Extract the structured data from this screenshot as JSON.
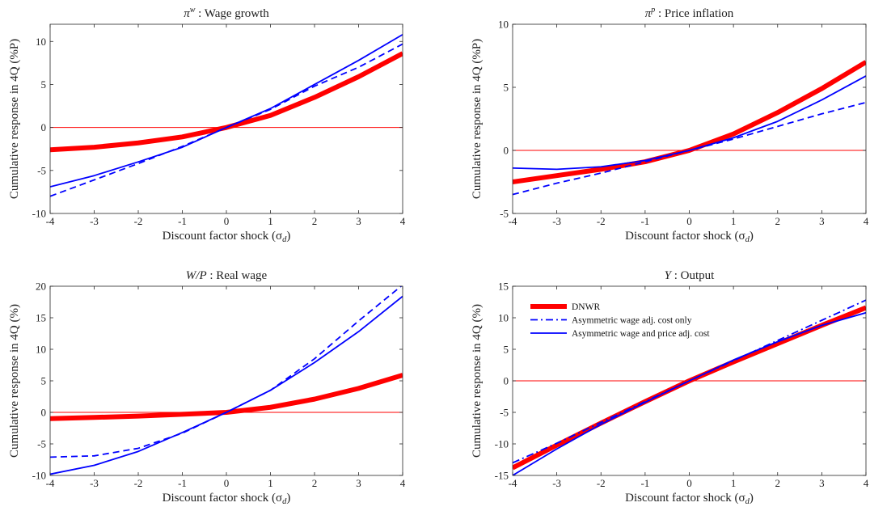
{
  "chart_data": [
    {
      "type": "line",
      "title_sym": "π",
      "title_sup": "w",
      "title_text": " : Wage growth",
      "xlabel": "Discount factor shock (σ",
      "xlabel_sub": "d",
      "xlabel_end": ")",
      "ylabel": "Cumulative response in 4Q (%P)",
      "x": [
        -4,
        -3,
        -2,
        -1,
        0,
        1,
        2,
        3,
        4
      ],
      "xlim": [
        -4,
        4
      ],
      "ylim": [
        -10,
        12
      ],
      "xticks": [
        "-4",
        "-3",
        "-2",
        "-1",
        "0",
        "1",
        "2",
        "3",
        "4"
      ],
      "yticks": [
        -10,
        -5,
        0,
        5,
        10
      ],
      "yticklabels": [
        "-10",
        "-5",
        "0",
        "5",
        "10"
      ],
      "zero_line": true,
      "series": [
        {
          "values": [
            -2.6,
            -2.3,
            -1.8,
            -1.1,
            0,
            1.4,
            3.5,
            5.9,
            8.6
          ],
          "color": "#ff0000",
          "width": 6,
          "dash": "solid"
        },
        {
          "values": [
            -8.0,
            -6.1,
            -4.2,
            -2.2,
            0,
            2.1,
            4.8,
            7.0,
            9.7
          ],
          "color": "#0000ff",
          "width": 1.8,
          "dash": "dashed"
        },
        {
          "values": [
            -6.9,
            -5.6,
            -4.0,
            -2.3,
            0,
            2.2,
            5.0,
            7.8,
            10.8
          ],
          "color": "#0000ff",
          "width": 1.8,
          "dash": "solid"
        }
      ]
    },
    {
      "type": "line",
      "title_sym": "π",
      "title_sup": "p",
      "title_text": " : Price inflation",
      "xlabel": "Discount factor shock (σ",
      "xlabel_sub": "d",
      "xlabel_end": ")",
      "ylabel": "Cumulative response in 4Q (%P)",
      "x": [
        -4,
        -3,
        -2,
        -1,
        0,
        1,
        2,
        3,
        4
      ],
      "xlim": [
        -4,
        4
      ],
      "ylim": [
        -5,
        10
      ],
      "xticks": [
        "-4",
        "-3",
        "-2",
        "-1",
        "0",
        "1",
        "2",
        "3",
        "4"
      ],
      "yticks": [
        -5,
        0,
        5,
        10
      ],
      "yticklabels": [
        "-5",
        "0",
        "5",
        "10"
      ],
      "zero_line": true,
      "series": [
        {
          "values": [
            -2.5,
            -2.0,
            -1.5,
            -0.9,
            0,
            1.3,
            3.0,
            4.9,
            7.0
          ],
          "color": "#ff0000",
          "width": 6,
          "dash": "solid"
        },
        {
          "values": [
            -3.5,
            -2.6,
            -1.8,
            -0.9,
            0,
            0.9,
            1.9,
            2.9,
            3.8
          ],
          "color": "#0000ff",
          "width": 1.8,
          "dash": "dashed"
        },
        {
          "values": [
            -1.4,
            -1.5,
            -1.3,
            -0.8,
            0,
            1.0,
            2.3,
            4.0,
            5.9
          ],
          "color": "#0000ff",
          "width": 1.8,
          "dash": "solid"
        }
      ]
    },
    {
      "type": "line",
      "title_sym": "W/P",
      "title_sup": "",
      "title_text": " : Real wage",
      "xlabel": "Discount factor shock (σ",
      "xlabel_sub": "d",
      "xlabel_end": ")",
      "ylabel": "Cumulative response in 4Q (%)",
      "x": [
        -4,
        -3,
        -2,
        -1,
        0,
        1,
        2,
        3,
        4
      ],
      "xlim": [
        -4,
        4
      ],
      "ylim": [
        -10,
        20
      ],
      "xticks": [
        "-4",
        "-3",
        "-2",
        "-1",
        "0",
        "1",
        "2",
        "3",
        "4"
      ],
      "yticks": [
        -10,
        -5,
        0,
        5,
        10,
        15,
        20
      ],
      "yticklabels": [
        "-10",
        "-5",
        "0",
        "5",
        "10",
        "15",
        "20"
      ],
      "zero_line": true,
      "series": [
        {
          "values": [
            -1.0,
            -0.8,
            -0.6,
            -0.3,
            0,
            0.8,
            2.1,
            3.8,
            5.9
          ],
          "color": "#ff0000",
          "width": 6,
          "dash": "solid"
        },
        {
          "values": [
            -7.1,
            -6.9,
            -5.7,
            -3.3,
            0,
            3.5,
            8.5,
            14.5,
            20.2
          ],
          "color": "#0000ff",
          "width": 1.8,
          "dash": "dashed"
        },
        {
          "values": [
            -9.8,
            -8.4,
            -6.2,
            -3.2,
            0,
            3.5,
            7.9,
            12.8,
            18.4
          ],
          "color": "#0000ff",
          "width": 1.8,
          "dash": "solid"
        }
      ]
    },
    {
      "type": "line",
      "title_sym": "Y",
      "title_sup": "",
      "title_text": " : Output",
      "xlabel": "Discount factor shock (σ",
      "xlabel_sub": "d",
      "xlabel_end": ")",
      "ylabel": "Cumulative response in 4Q (%)",
      "x": [
        -4,
        -3,
        -2,
        -1,
        0,
        1,
        2,
        3,
        4
      ],
      "xlim": [
        -4,
        4
      ],
      "ylim": [
        -15,
        15
      ],
      "xticks": [
        "-4",
        "-3",
        "-2",
        "-1",
        "0",
        "1",
        "2",
        "3",
        "4"
      ],
      "yticks": [
        -15,
        -10,
        -5,
        0,
        5,
        10,
        15
      ],
      "yticklabels": [
        "-15",
        "-10",
        "-5",
        "0",
        "5",
        "10",
        "15"
      ],
      "zero_line": true,
      "legend": {
        "placement": "top-left",
        "entries": [
          {
            "label": "DNWR",
            "series_index": 0
          },
          {
            "label": "Asymmetric wage adj. cost only",
            "series_index": 1
          },
          {
            "label": "Asymmetric wage and price adj. cost",
            "series_index": 2
          }
        ]
      },
      "series": [
        {
          "values": [
            -13.8,
            -10.2,
            -6.7,
            -3.3,
            0,
            3.0,
            5.9,
            8.8,
            11.6
          ],
          "color": "#ff0000",
          "width": 6,
          "dash": "solid"
        },
        {
          "values": [
            -13.0,
            -9.9,
            -6.6,
            -3.3,
            0,
            3.2,
            6.4,
            9.6,
            12.8
          ],
          "color": "#0000ff",
          "width": 1.8,
          "dash": "dashdot"
        },
        {
          "values": [
            -15.0,
            -10.8,
            -6.9,
            -3.4,
            0,
            3.3,
            6.2,
            8.8,
            10.8
          ],
          "color": "#0000ff",
          "width": 1.8,
          "dash": "solid"
        }
      ]
    }
  ]
}
